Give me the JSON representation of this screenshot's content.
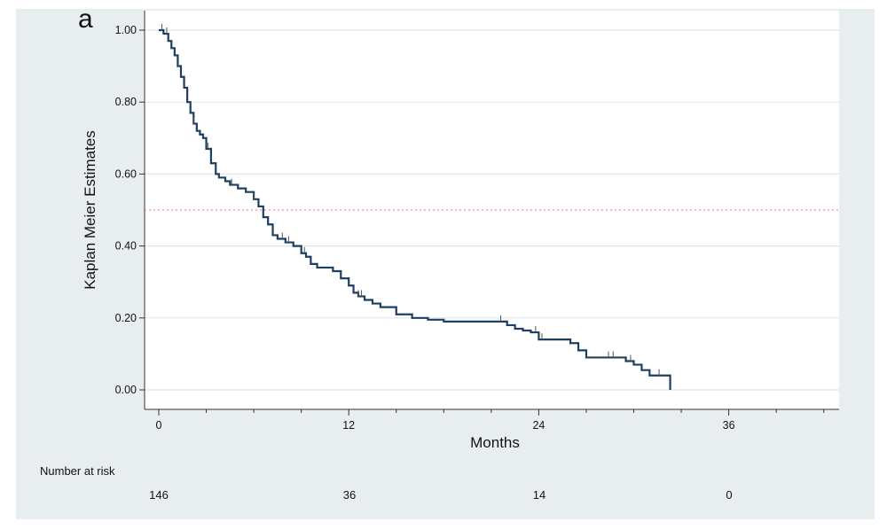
{
  "panel_label": "a",
  "chart_data": {
    "type": "line",
    "subtype": "kaplan-meier",
    "xlabel": "Months",
    "ylabel": "Kaplan Meier Estimates",
    "xlim": [
      0,
      42
    ],
    "ylim": [
      0,
      1
    ],
    "xticks": [
      0,
      12,
      24,
      36
    ],
    "xtick_labels": [
      "0",
      "12",
      "24",
      "36"
    ],
    "yticks": [
      0,
      0.2,
      0.4,
      0.6,
      0.8,
      1.0
    ],
    "ytick_labels": [
      "0.00",
      "0.20",
      "0.40",
      "0.60",
      "0.80",
      "1.00"
    ],
    "grid": "horizontal",
    "reference_line": {
      "y": 0.5,
      "style": "dotted",
      "color": "#e07a8a"
    },
    "line_color": "#1f3f60",
    "series": [
      {
        "x": [
          0,
          0.3,
          0.6,
          0.8,
          1.0,
          1.2,
          1.4,
          1.6,
          1.8,
          2.0,
          2.2,
          2.4,
          2.6,
          2.8,
          3.0,
          3.3,
          3.6,
          3.8,
          4.0,
          4.2,
          4.5,
          5.0,
          5.5,
          6.0,
          6.3,
          6.6,
          6.9,
          7.2,
          7.5,
          8.0,
          8.5,
          9.0,
          9.3,
          9.6,
          10.0,
          10.5,
          11.0,
          11.5,
          12.0,
          12.3,
          12.6,
          13.0,
          13.5,
          14.0,
          15.0,
          16.0,
          17.0,
          18.0,
          20.0,
          21.0,
          22.0,
          22.5,
          23.0,
          23.5,
          24.0,
          25.0,
          26.0,
          26.5,
          27.0,
          28.0,
          29.0,
          29.5,
          30.0,
          30.5,
          31.0,
          32.0,
          32.3
        ],
        "y": [
          1.0,
          0.99,
          0.97,
          0.95,
          0.93,
          0.9,
          0.87,
          0.84,
          0.8,
          0.77,
          0.74,
          0.72,
          0.71,
          0.7,
          0.67,
          0.63,
          0.6,
          0.59,
          0.59,
          0.58,
          0.57,
          0.56,
          0.55,
          0.53,
          0.51,
          0.48,
          0.46,
          0.43,
          0.42,
          0.41,
          0.4,
          0.38,
          0.37,
          0.35,
          0.34,
          0.34,
          0.33,
          0.31,
          0.29,
          0.27,
          0.26,
          0.25,
          0.24,
          0.23,
          0.21,
          0.2,
          0.195,
          0.19,
          0.19,
          0.19,
          0.18,
          0.17,
          0.165,
          0.16,
          0.14,
          0.14,
          0.13,
          0.11,
          0.09,
          0.09,
          0.09,
          0.08,
          0.07,
          0.055,
          0.04,
          0.04,
          0.0
        ],
        "censored_x": [
          0.2,
          0.5,
          2.2,
          3.1,
          4.6,
          6.0,
          7.8,
          8.2,
          9.2,
          12.6,
          12.8,
          21.6,
          23.8,
          24.2,
          28.4,
          28.7,
          29.8,
          31.6
        ]
      }
    ],
    "risk_table": {
      "title": "Number at risk",
      "times": [
        0,
        12,
        24,
        36
      ],
      "values": [
        "146",
        "36",
        "14",
        "0"
      ]
    }
  }
}
